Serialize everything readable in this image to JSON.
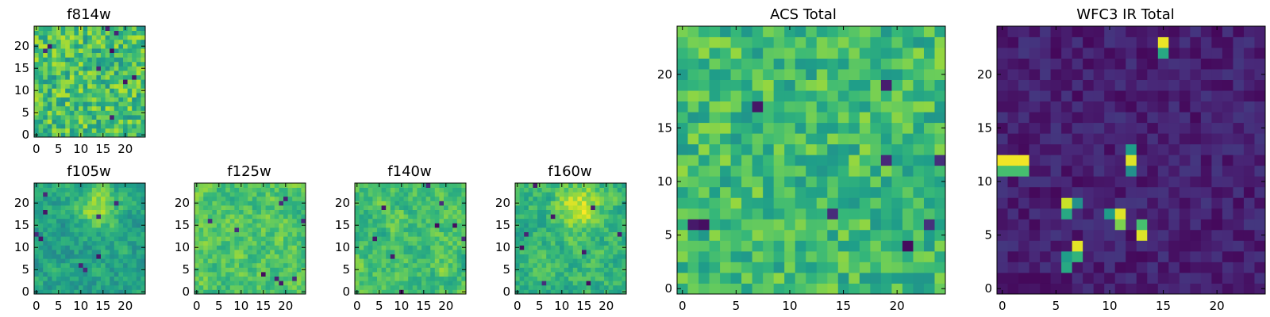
{
  "chart_data": {
    "type": "heatmap",
    "colormap": "viridis",
    "grid_size": 25,
    "axis_range": [
      0,
      24
    ],
    "panels": [
      {
        "id": "f814w",
        "title": "f814w",
        "x_ticks": [
          "0",
          "5",
          "10",
          "15",
          "20"
        ],
        "y_ticks": [
          "0",
          "5",
          "10",
          "15",
          "20"
        ],
        "pattern": "noise",
        "seed": 11,
        "mean": 0.7,
        "spread": 0.2
      },
      {
        "id": "f105w",
        "title": "f105w",
        "x_ticks": [
          "0",
          "5",
          "10",
          "15",
          "20"
        ],
        "y_ticks": [
          "0",
          "5",
          "10",
          "15",
          "20"
        ],
        "pattern": "blob",
        "seed": 23,
        "mean": 0.58,
        "spread": 0.2
      },
      {
        "id": "f125w",
        "title": "f125w",
        "x_ticks": [
          "0",
          "5",
          "10",
          "15",
          "20"
        ],
        "y_ticks": [
          "0",
          "5",
          "10",
          "15",
          "20"
        ],
        "pattern": "smooth",
        "seed": 37,
        "mean": 0.72,
        "spread": 0.2
      },
      {
        "id": "f140w",
        "title": "f140w",
        "x_ticks": [
          "0",
          "5",
          "10",
          "15",
          "20"
        ],
        "y_ticks": [
          "0",
          "5",
          "10",
          "15",
          "20"
        ],
        "pattern": "smooth",
        "seed": 51,
        "mean": 0.7,
        "spread": 0.2
      },
      {
        "id": "f160w",
        "title": "f160w",
        "x_ticks": [
          "0",
          "5",
          "10",
          "15",
          "20"
        ],
        "y_ticks": [
          "0",
          "5",
          "10",
          "15",
          "20"
        ],
        "pattern": "blob",
        "seed": 67,
        "mean": 0.66,
        "spread": 0.2
      },
      {
        "id": "acs_total",
        "title": "ACS Total",
        "x_ticks": [
          "0",
          "5",
          "10",
          "15",
          "20"
        ],
        "y_ticks": [
          "0",
          "5",
          "10",
          "15",
          "20"
        ],
        "pattern": "noise",
        "seed": 83,
        "mean": 0.68,
        "spread": 0.16
      },
      {
        "id": "wfc3_ir_total",
        "title": "WFC3 IR Total",
        "x_ticks": [
          "0",
          "5",
          "10",
          "15",
          "20"
        ],
        "y_ticks": [
          "0",
          "5",
          "10",
          "15",
          "20"
        ],
        "pattern": "hotspots",
        "seed": 97,
        "mean": 0.09,
        "spread": 0.07,
        "hotspots": [
          {
            "x": 15,
            "y": 23,
            "value": 0.97
          },
          {
            "x": 15,
            "y": 22,
            "value": 0.6
          },
          {
            "x": 0,
            "y": 12,
            "value": 0.98
          },
          {
            "x": 1,
            "y": 12,
            "value": 0.98
          },
          {
            "x": 2,
            "y": 12,
            "value": 0.98
          },
          {
            "x": 0,
            "y": 11,
            "value": 0.7
          },
          {
            "x": 1,
            "y": 11,
            "value": 0.7
          },
          {
            "x": 2,
            "y": 11,
            "value": 0.7
          },
          {
            "x": 12,
            "y": 12,
            "value": 0.95
          },
          {
            "x": 12,
            "y": 13,
            "value": 0.55
          },
          {
            "x": 12,
            "y": 11,
            "value": 0.5
          },
          {
            "x": 6,
            "y": 8,
            "value": 0.92
          },
          {
            "x": 6,
            "y": 7,
            "value": 0.6
          },
          {
            "x": 7,
            "y": 8,
            "value": 0.5
          },
          {
            "x": 11,
            "y": 7,
            "value": 0.95
          },
          {
            "x": 11,
            "y": 6,
            "value": 0.8
          },
          {
            "x": 10,
            "y": 7,
            "value": 0.55
          },
          {
            "x": 13,
            "y": 6,
            "value": 0.7
          },
          {
            "x": 13,
            "y": 5,
            "value": 0.95
          },
          {
            "x": 7,
            "y": 4,
            "value": 0.96
          },
          {
            "x": 7,
            "y": 3,
            "value": 0.65
          },
          {
            "x": 6,
            "y": 3,
            "value": 0.55
          },
          {
            "x": 6,
            "y": 2,
            "value": 0.6
          }
        ]
      }
    ]
  }
}
